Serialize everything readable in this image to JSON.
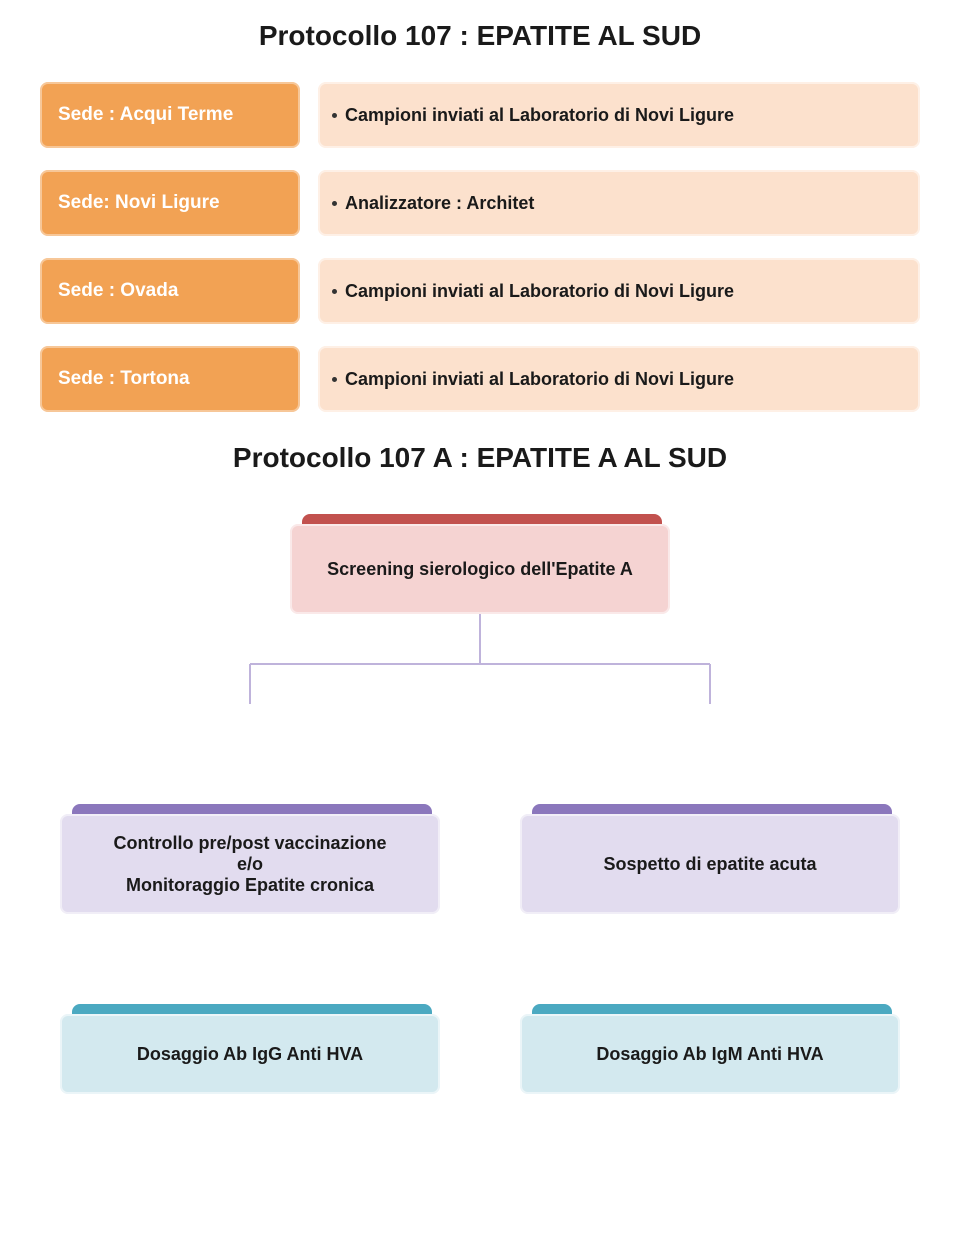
{
  "title": "Protocollo 107 : EPATITE AL SUD",
  "rows": [
    {
      "sede": "Sede : Acqui Terme",
      "desc": "Campioni inviati al Laboratorio di Novi Ligure"
    },
    {
      "sede": "Sede: Novi Ligure",
      "desc": "Analizzatore : Architet"
    },
    {
      "sede": "Sede : Ovada",
      "desc": "Campioni inviati al Laboratorio di Novi Ligure"
    },
    {
      "sede": "Sede : Tortona",
      "desc": "Campioni inviati al Laboratorio di Novi Ligure"
    }
  ],
  "row_colors": {
    "sede_bg": "#f2a254",
    "sede_text": "#ffffff",
    "desc_bg": "#fce1cd",
    "desc_text": "#1a1a1a"
  },
  "subtitle": "Protocollo 107 A : EPATITE A AL SUD",
  "tree": {
    "root": {
      "label": "Screening sierologico dell'Epatite A",
      "back_color": "#c2514e",
      "front_color": "#f5d3d2",
      "text_color": "#1a1a1a"
    },
    "children": [
      {
        "label": "Controllo pre/post vaccinazione\ne/o\nMonitoraggio Epatite cronica",
        "back_color": "#8b77bc",
        "front_color": "#e2dcef",
        "text_color": "#1a1a1a"
      },
      {
        "label": "Sospetto di epatite acuta",
        "back_color": "#8b77bc",
        "front_color": "#e2dcef",
        "text_color": "#1a1a1a"
      }
    ],
    "leaves": [
      {
        "label": "Dosaggio Ab IgG Anti HVA",
        "back_color": "#4ba9c1",
        "front_color": "#d3e9ef",
        "text_color": "#1a1a1a"
      },
      {
        "label": "Dosaggio Ab IgM Anti HVA",
        "back_color": "#4ba9c1",
        "front_color": "#d3e9ef",
        "text_color": "#1a1a1a"
      }
    ],
    "connector_color": "#bfb3db",
    "leaf_connector_color": "#a6d2dd"
  }
}
